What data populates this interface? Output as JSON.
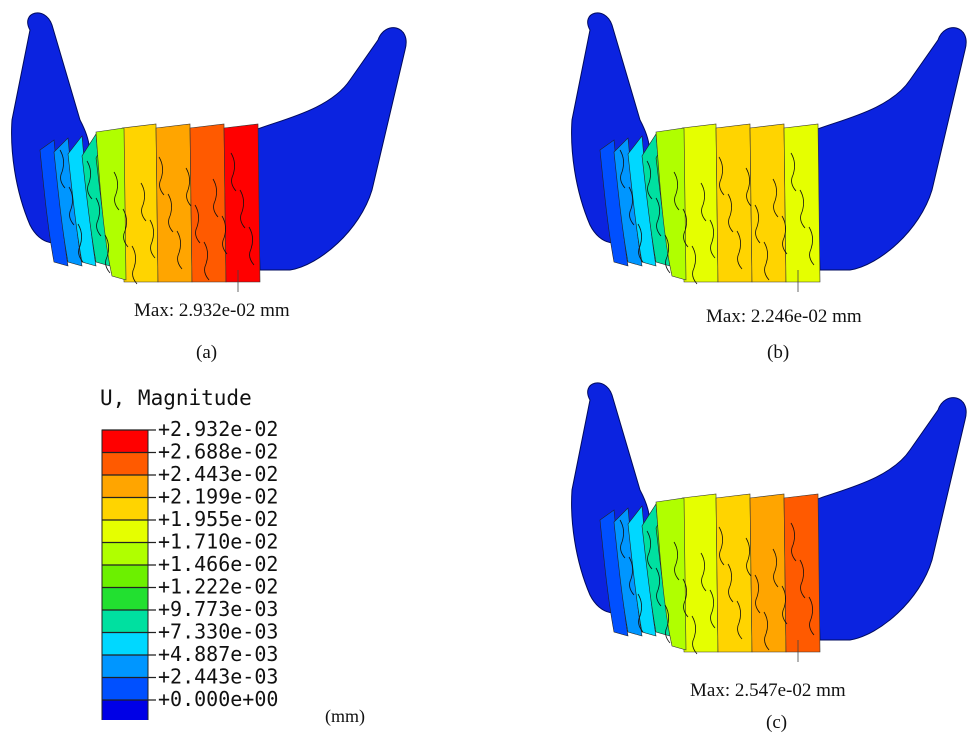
{
  "legend": {
    "title": "U, Magnitude",
    "unit": "(mm)",
    "colors": [
      "#ff0000",
      "#ff5a00",
      "#ffa500",
      "#ffd400",
      "#e5ff00",
      "#b0ff00",
      "#6cf000",
      "#22e030",
      "#00e0a0",
      "#00d8ff",
      "#0096ff",
      "#0050ff",
      "#0000e6"
    ],
    "labels": [
      "+2.932e-02",
      "+2.688e-02",
      "+2.443e-02",
      "+2.199e-02",
      "+1.955e-02",
      "+1.710e-02",
      "+1.466e-02",
      "+1.222e-02",
      "+9.773e-03",
      "+7.330e-03",
      "+4.887e-03",
      "+2.443e-03",
      "+0.000e+00"
    ]
  },
  "panels": [
    {
      "caption": "(a)",
      "max_label": "Max: 2.932e-02 mm",
      "central_colors": [
        "#ffd400",
        "#ffa500",
        "#ff5a00",
        "#ff0000"
      ]
    },
    {
      "caption": "(b)",
      "max_label": "Max: 2.246e-02 mm",
      "central_colors": [
        "#e5ff00",
        "#ffd400",
        "#ffd400",
        "#e5ff00"
      ]
    },
    {
      "caption": "(c)",
      "max_label": "Max: 2.547e-02 mm",
      "central_colors": [
        "#e5ff00",
        "#ffd400",
        "#ffa500",
        "#ff5a00"
      ]
    }
  ]
}
